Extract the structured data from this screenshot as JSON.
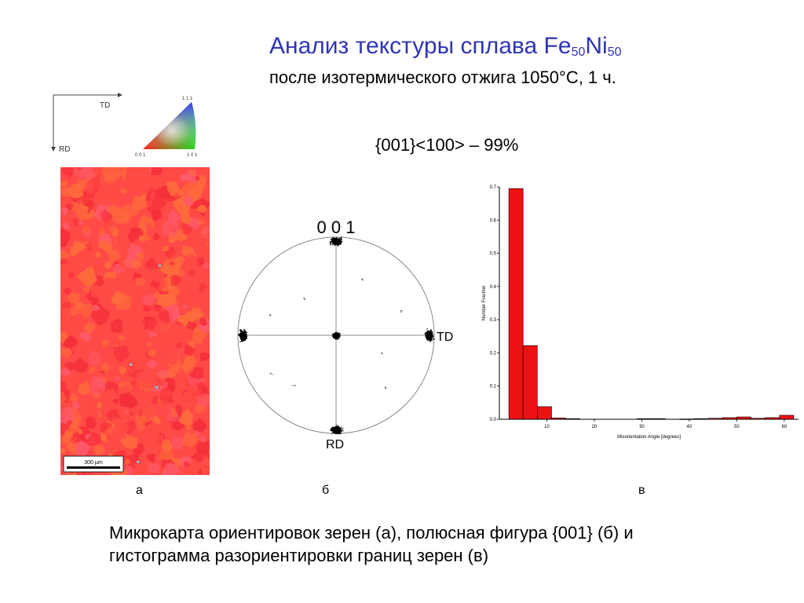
{
  "title": {
    "text": "Анализ текстуры сплава Fe",
    "sub1": "50",
    "mid": "Ni",
    "sub2": "50"
  },
  "subtitle": "после изотермического отжига 1050°С, 1 ч.",
  "texture_label": "{001}<100> – 99%",
  "axes": {
    "td": "TD",
    "rd": "RD"
  },
  "ipf_key": {
    "top": "1 1 1",
    "left": "0 0 1",
    "right": "1 0 1"
  },
  "scale_bar": "300 µm",
  "pole_figure": {
    "title": "0 0 1",
    "td": "TD",
    "rd": "RD"
  },
  "panels": {
    "a": "а",
    "b": "б",
    "v": "в"
  },
  "caption_line1": "Микрокарта ориентировок зерен (а), полюсная фигура {001} (б) и",
  "caption_line2": "гистограмма разориентировки границ зерен (в)",
  "map_colors": {
    "base": "#ff4a46",
    "dark": "#f5303a",
    "orange": "#ff6a3c",
    "pink": "#ff5a6a",
    "cyan": "#6fd6e8"
  },
  "chart_data": {
    "type": "bar",
    "xlabel": "Misorientation Angle [degrees]",
    "ylabel": "Number Fraction",
    "xlim": [
      0,
      63
    ],
    "ylim": [
      0,
      0.7
    ],
    "xticks": [
      10,
      20,
      30,
      40,
      50,
      60
    ],
    "yticks": [
      0.0,
      0.1,
      0.2,
      0.3,
      0.4,
      0.5,
      0.6,
      0.7
    ],
    "bin_width": 3,
    "bins": [
      {
        "x0": 2,
        "value": 0.695
      },
      {
        "x0": 5,
        "value": 0.222
      },
      {
        "x0": 8,
        "value": 0.038
      },
      {
        "x0": 11,
        "value": 0.004
      },
      {
        "x0": 14,
        "value": 0.002
      },
      {
        "x0": 29,
        "value": 0.002
      },
      {
        "x0": 32,
        "value": 0.002
      },
      {
        "x0": 38,
        "value": 0.001
      },
      {
        "x0": 41,
        "value": 0.002
      },
      {
        "x0": 44,
        "value": 0.003
      },
      {
        "x0": 47,
        "value": 0.005
      },
      {
        "x0": 50,
        "value": 0.007
      },
      {
        "x0": 53,
        "value": 0.003
      },
      {
        "x0": 56,
        "value": 0.005
      },
      {
        "x0": 59,
        "value": 0.012
      }
    ],
    "bar_color": "#ee1111"
  }
}
